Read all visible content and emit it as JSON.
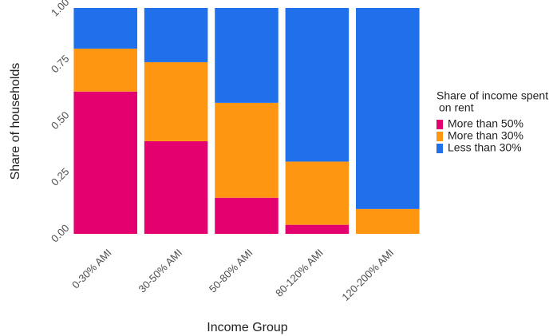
{
  "chart_data": {
    "type": "stacked_bar",
    "x_label": "Income Group",
    "y_label": "Share of households",
    "legend_title": [
      "Share of income spent",
      "on rent"
    ],
    "categories": [
      "0-30% AMI",
      "30-50% AMI",
      "50-80% AMI",
      "80-120% AMI",
      "120-200% AMI"
    ],
    "series": [
      {
        "name": "More than 50%",
        "color": "#e4006f",
        "values": [
          0.63,
          0.41,
          0.16,
          0.04,
          0
        ]
      },
      {
        "name": "More than 30%",
        "color": "#ff9612",
        "values": [
          0.19,
          0.35,
          0.42,
          0.28,
          0.11
        ]
      },
      {
        "name": "Less than 30%",
        "color": "#1f70ea",
        "values": [
          0.18,
          0.24,
          0.42,
          0.68,
          0.89
        ]
      }
    ],
    "ylim": [
      0,
      1
    ],
    "yticks": [
      {
        "value": 0,
        "label": "0.00"
      },
      {
        "value": 0.25,
        "label": "0.25"
      },
      {
        "value": 0.5,
        "label": "0.50"
      },
      {
        "value": 0.75,
        "label": "0.75"
      },
      {
        "value": 1,
        "label": "1.00"
      }
    ],
    "grid": false,
    "legend": "right"
  }
}
